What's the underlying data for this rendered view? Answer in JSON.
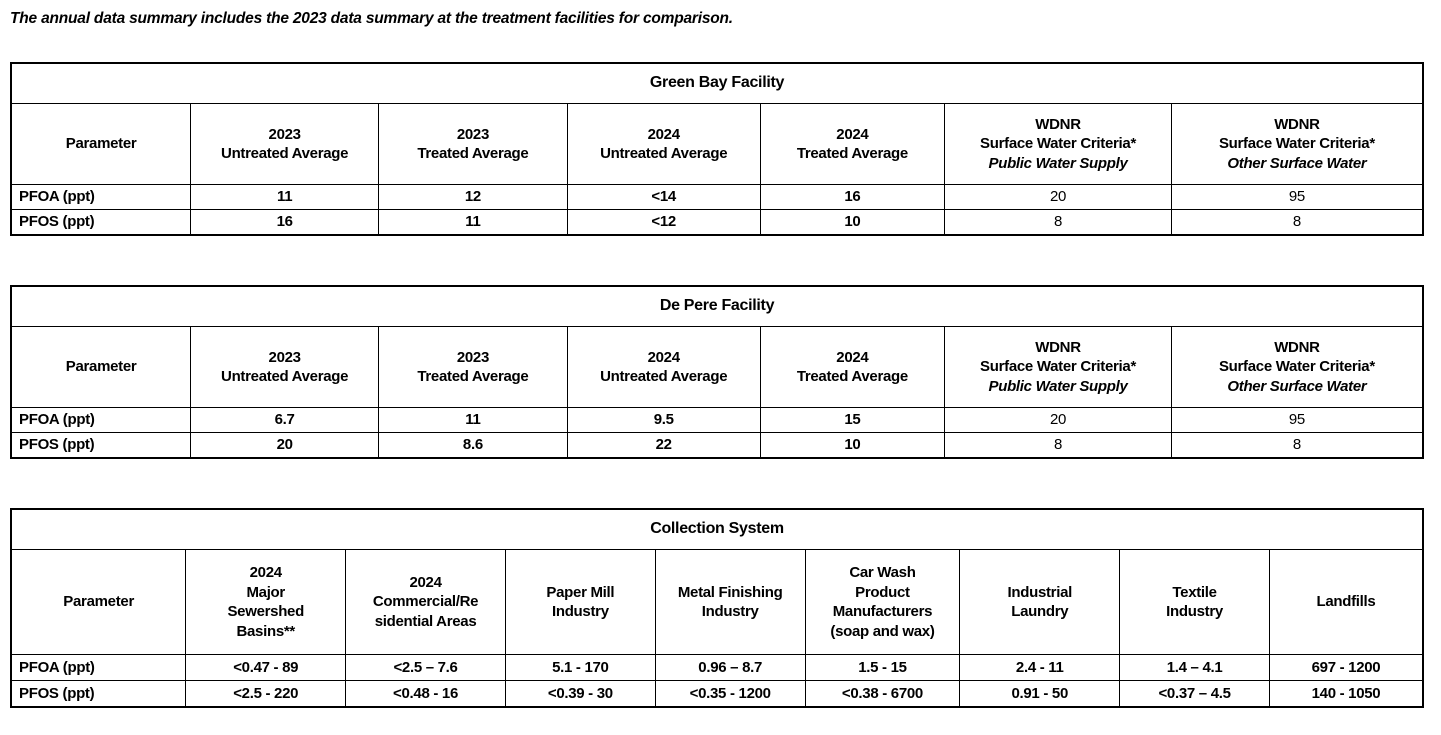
{
  "intro_text": "The annual data summary includes the 2023 data summary at the treatment facilities for comparison.",
  "colors": {
    "text": "#000000",
    "border": "#000000",
    "background": "#ffffff"
  },
  "tables": [
    {
      "name": "green-bay",
      "title": "Green Bay Facility",
      "columns": [
        {
          "width": 12.73,
          "lines": [
            "Parameter"
          ]
        },
        {
          "width": 13.3,
          "lines": [
            "2023",
            "Untreated Average"
          ]
        },
        {
          "width": 13.37,
          "lines": [
            "2023",
            "Treated Average"
          ]
        },
        {
          "width": 13.65,
          "lines": [
            "2024",
            "Untreated Average"
          ]
        },
        {
          "width": 13.08,
          "lines": [
            "2024",
            "Treated Average"
          ]
        },
        {
          "width": 16.05,
          "lines": [
            "WDNR",
            "Surface Water Criteria*",
            "Public Water Supply"
          ],
          "italic_last": true
        },
        {
          "width": 17.82,
          "lines": [
            "WDNR",
            "Surface Water Criteria*",
            "Other Surface Water"
          ],
          "italic_last": true
        }
      ],
      "regular_cols": [
        5,
        6
      ],
      "rows": [
        {
          "cells": [
            "PFOA (ppt)",
            "11",
            "12",
            "<14",
            "16",
            "20",
            "95"
          ]
        },
        {
          "cells": [
            "PFOS (ppt)",
            "16",
            "11",
            "<12",
            "10",
            "8",
            "8"
          ]
        }
      ]
    },
    {
      "name": "de-pere",
      "title": "De Pere Facility",
      "columns": [
        {
          "width": 12.73,
          "lines": [
            "Parameter"
          ]
        },
        {
          "width": 13.3,
          "lines": [
            "2023",
            "Untreated Average"
          ]
        },
        {
          "width": 13.37,
          "lines": [
            "2023",
            "Treated Average"
          ]
        },
        {
          "width": 13.65,
          "lines": [
            "2024",
            "Untreated Average"
          ]
        },
        {
          "width": 13.08,
          "lines": [
            "2024",
            "Treated Average"
          ]
        },
        {
          "width": 16.05,
          "lines": [
            "WDNR",
            "Surface Water Criteria*",
            "Public Water Supply"
          ],
          "italic_last": true
        },
        {
          "width": 17.82,
          "lines": [
            "WDNR",
            "Surface Water Criteria*",
            "Other Surface Water"
          ],
          "italic_last": true
        }
      ],
      "regular_cols": [
        5,
        6
      ],
      "rows": [
        {
          "cells": [
            "PFOA (ppt)",
            "6.7",
            "11",
            "9.5",
            "15",
            "20",
            "95"
          ]
        },
        {
          "cells": [
            "PFOS (ppt)",
            "20",
            "8.6",
            "22",
            "10",
            "8",
            "8"
          ]
        }
      ]
    },
    {
      "name": "collection-system",
      "title": "Collection System",
      "columns": [
        {
          "width": 12.38,
          "lines": [
            "Parameter"
          ]
        },
        {
          "width": 11.32,
          "lines": [
            "2024",
            "Major",
            "Sewershed",
            "Basins**"
          ]
        },
        {
          "width": 11.32,
          "lines": [
            "2024",
            "Commercial/Re",
            "sidential Areas"
          ]
        },
        {
          "width": 10.61,
          "lines": [
            "Paper Mill",
            "Industry"
          ]
        },
        {
          "width": 10.61,
          "lines": [
            "Metal Finishing",
            "Industry"
          ]
        },
        {
          "width": 10.96,
          "lines": [
            "Car Wash",
            "Product",
            "Manufacturers",
            "(soap and wax)"
          ]
        },
        {
          "width": 11.32,
          "lines": [
            "Industrial",
            "Laundry"
          ]
        },
        {
          "width": 10.61,
          "lines": [
            "Textile",
            "Industry"
          ]
        },
        {
          "width": 10.87,
          "lines": [
            "Landfills"
          ]
        }
      ],
      "regular_cols": [],
      "rows": [
        {
          "cells": [
            "PFOA (ppt)",
            "<0.47 - 89",
            "<2.5 – 7.6",
            "5.1 - 170",
            "0.96 – 8.7",
            "1.5 - 15",
            "2.4 - 11",
            "1.4 – 4.1",
            "697 - 1200"
          ]
        },
        {
          "cells": [
            "PFOS (ppt)",
            "<2.5 - 220",
            "<0.48 - 16",
            "<0.39 - 30",
            "<0.35 - 1200",
            "<0.38 - 6700",
            "0.91 - 50",
            "<0.37 – 4.5",
            "140 - 1050"
          ]
        }
      ]
    }
  ]
}
